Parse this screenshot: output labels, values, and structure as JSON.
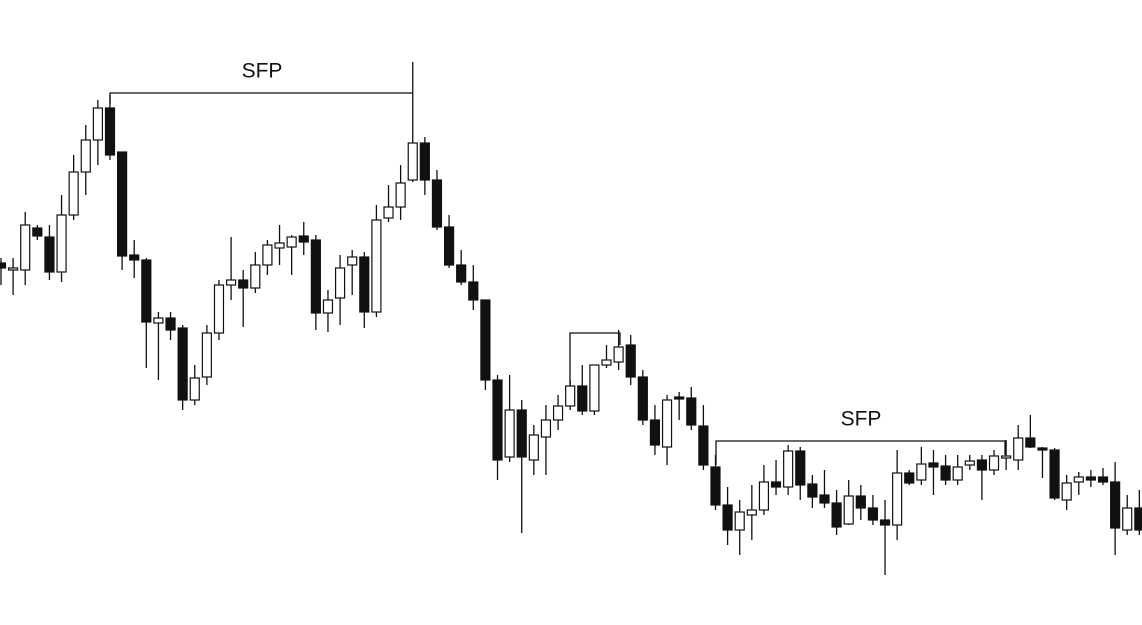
{
  "chart_data": {
    "type": "candlestick",
    "up_color": "#ffffff",
    "down_color": "#111111",
    "ylim": [
      0,
      620
    ],
    "open": [
      357,
      350,
      350,
      392,
      383,
      348,
      405,
      448,
      480,
      512,
      468,
      365,
      360,
      297,
      302,
      292,
      220,
      243,
      287,
      335,
      340,
      332,
      355,
      372,
      373,
      384,
      380,
      307,
      322,
      355,
      363,
      308,
      402,
      413,
      440,
      477,
      440,
      393,
      355,
      338,
      320,
      240,
      163,
      210,
      160,
      183,
      200,
      214,
      234,
      209,
      255,
      258,
      275,
      243,
      200,
      173,
      223,
      222,
      194,
      153,
      115,
      90,
      105,
      110,
      138,
      133,
      169,
      136,
      125,
      117,
      96,
      124,
      112,
      100,
      95,
      147,
      140,
      157,
      154,
      140,
      155,
      160,
      150,
      162,
      160,
      182,
      172,
      170,
      120,
      138,
      143,
      143,
      138,
      90,
      112
    ],
    "high": [
      362,
      362,
      408,
      395,
      395,
      425,
      465,
      495,
      520,
      525,
      468,
      380,
      362,
      308,
      308,
      295,
      255,
      295,
      340,
      383,
      350,
      368,
      380,
      395,
      385,
      398,
      385,
      330,
      365,
      370,
      368,
      415,
      435,
      455,
      558,
      483,
      450,
      405,
      370,
      355,
      320,
      245,
      245,
      220,
      195,
      215,
      225,
      240,
      255,
      255,
      275,
      290,
      285,
      250,
      215,
      225,
      228,
      233,
      215,
      165,
      133,
      120,
      135,
      155,
      160,
      175,
      173,
      145,
      150,
      130,
      140,
      135,
      125,
      120,
      170,
      150,
      173,
      170,
      165,
      165,
      165,
      165,
      170,
      180,
      195,
      205,
      173,
      172,
      145,
      148,
      150,
      152,
      158,
      125,
      130
    ],
    "low": [
      335,
      325,
      335,
      380,
      340,
      338,
      400,
      425,
      455,
      460,
      350,
      342,
      252,
      240,
      280,
      210,
      215,
      235,
      280,
      320,
      293,
      327,
      345,
      355,
      345,
      365,
      290,
      288,
      295,
      325,
      292,
      303,
      398,
      400,
      438,
      425,
      390,
      352,
      335,
      310,
      230,
      140,
      158,
      87,
      145,
      145,
      190,
      210,
      205,
      205,
      252,
      250,
      235,
      195,
      165,
      155,
      200,
      190,
      150,
      110,
      75,
      65,
      80,
      105,
      125,
      125,
      120,
      112,
      112,
      85,
      95,
      100,
      95,
      45,
      80,
      135,
      135,
      125,
      135,
      135,
      150,
      120,
      145,
      150,
      150,
      172,
      142,
      120,
      110,
      125,
      133,
      135,
      65,
      85,
      85
    ],
    "close": [
      352,
      352,
      395,
      384,
      348,
      405,
      448,
      480,
      512,
      465,
      364,
      360,
      298,
      302,
      290,
      220,
      242,
      287,
      335,
      340,
      332,
      355,
      375,
      377,
      383,
      378,
      307,
      320,
      352,
      363,
      308,
      400,
      413,
      437,
      477,
      440,
      393,
      355,
      338,
      320,
      240,
      160,
      210,
      163,
      185,
      200,
      214,
      234,
      209,
      255,
      260,
      273,
      243,
      200,
      175,
      220,
      221,
      195,
      155,
      115,
      90,
      108,
      110,
      138,
      133,
      169,
      135,
      123,
      117,
      93,
      124,
      112,
      100,
      95,
      147,
      137,
      156,
      153,
      140,
      153,
      159,
      150,
      164,
      164,
      182,
      173,
      170,
      122,
      137,
      143,
      140,
      138,
      92,
      112,
      90
    ],
    "annotations": [
      {
        "text": "SFP"
      },
      {
        "text": "SFP"
      }
    ]
  }
}
